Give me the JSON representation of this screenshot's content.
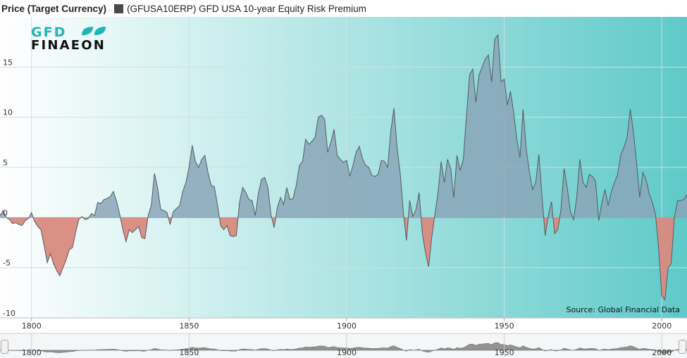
{
  "legend": {
    "price_title": "Price (Target Currency)",
    "series_name": "(GFUSA10ERP) GFD USA 10-year Equity Risk Premium"
  },
  "logo": {
    "line1": "GFD",
    "line2": "FINAEON"
  },
  "source": "Source: Global Financial Data",
  "colors": {
    "positive_fill": "#8aa6b8",
    "negative_fill": "#d98a80",
    "line": "#555b60",
    "grid": "#d7dcdf",
    "bg_left": "#ffffff",
    "bg_right": "#5fcac9",
    "navigator_fill": "#6a6a6a"
  },
  "chart_data": {
    "type": "area",
    "title": "",
    "xlabel": "",
    "ylabel": "",
    "xlim": [
      1790,
      2008
    ],
    "ylim": [
      -10,
      20
    ],
    "yticks": [
      -10,
      -5,
      0,
      5,
      10,
      15
    ],
    "xticks": [
      1800,
      1850,
      1900,
      1950,
      2000
    ],
    "navigator_ticks": [
      1800,
      1850,
      1900,
      1950,
      2000
    ],
    "series": [
      {
        "points": [
          [
            1790,
            0.2
          ],
          [
            1791,
            0.7
          ],
          [
            1792,
            0
          ],
          [
            1793,
            -0.2
          ],
          [
            1794,
            -0.6
          ],
          [
            1795,
            -0.5
          ],
          [
            1796,
            -0.7
          ],
          [
            1797,
            -0.8
          ],
          [
            1798,
            -0.3
          ],
          [
            1799,
            -0.1
          ],
          [
            1800,
            0.5
          ],
          [
            1801,
            -0.4
          ],
          [
            1802,
            -0.9
          ],
          [
            1803,
            -1.2
          ],
          [
            1804,
            -2.8
          ],
          [
            1805,
            -4.5
          ],
          [
            1806,
            -3.6
          ],
          [
            1807,
            -4.6
          ],
          [
            1808,
            -5.3
          ],
          [
            1809,
            -5.8
          ],
          [
            1810,
            -5.0
          ],
          [
            1811,
            -4.2
          ],
          [
            1812,
            -3.2
          ],
          [
            1813,
            -3.0
          ],
          [
            1814,
            -1.5
          ],
          [
            1815,
            -0.2
          ],
          [
            1816,
            0.1
          ],
          [
            1817,
            -0.2
          ],
          [
            1818,
            -0.1
          ],
          [
            1819,
            0.4
          ],
          [
            1820,
            0.2
          ],
          [
            1821,
            1.5
          ],
          [
            1822,
            1.4
          ],
          [
            1823,
            1.8
          ],
          [
            1824,
            1.9
          ],
          [
            1825,
            2.1
          ],
          [
            1826,
            2.6
          ],
          [
            1827,
            1.6
          ],
          [
            1828,
            0.3
          ],
          [
            1829,
            -1.2
          ],
          [
            1830,
            -2.4
          ],
          [
            1831,
            -1.2
          ],
          [
            1832,
            -1.5
          ],
          [
            1833,
            -1.2
          ],
          [
            1834,
            -0.9
          ],
          [
            1835,
            -2.0
          ],
          [
            1836,
            -2.1
          ],
          [
            1837,
            0.2
          ],
          [
            1838,
            1.2
          ],
          [
            1839,
            4.4
          ],
          [
            1840,
            3.0
          ],
          [
            1841,
            0.8
          ],
          [
            1842,
            0.7
          ],
          [
            1843,
            0.5
          ],
          [
            1844,
            -0.7
          ],
          [
            1845,
            0.6
          ],
          [
            1846,
            0.9
          ],
          [
            1847,
            1.2
          ],
          [
            1848,
            2.6
          ],
          [
            1849,
            3.5
          ],
          [
            1850,
            5.0
          ],
          [
            1851,
            7.2
          ],
          [
            1852,
            5.6
          ],
          [
            1853,
            5.0
          ],
          [
            1854,
            5.8
          ],
          [
            1855,
            6.2
          ],
          [
            1856,
            4.5
          ],
          [
            1857,
            3.2
          ],
          [
            1858,
            3.1
          ],
          [
            1859,
            1.3
          ],
          [
            1860,
            -0.8
          ],
          [
            1861,
            -1.2
          ],
          [
            1862,
            -0.8
          ],
          [
            1863,
            -1.8
          ],
          [
            1864,
            -1.9
          ],
          [
            1865,
            -1.8
          ],
          [
            1866,
            1.5
          ],
          [
            1867,
            3.0
          ],
          [
            1868,
            2.5
          ],
          [
            1869,
            1.8
          ],
          [
            1870,
            1.7
          ],
          [
            1871,
            0.2
          ],
          [
            1872,
            2.4
          ],
          [
            1873,
            3.8
          ],
          [
            1874,
            4.0
          ],
          [
            1875,
            3.0
          ],
          [
            1876,
            0.3
          ],
          [
            1877,
            -1.0
          ],
          [
            1878,
            1.0
          ],
          [
            1879,
            2.0
          ],
          [
            1880,
            1.3
          ],
          [
            1881,
            3.0
          ],
          [
            1882,
            1.8
          ],
          [
            1883,
            1.9
          ],
          [
            1884,
            3.2
          ],
          [
            1885,
            5.2
          ],
          [
            1886,
            5.6
          ],
          [
            1887,
            7.8
          ],
          [
            1888,
            7.3
          ],
          [
            1889,
            7.6
          ],
          [
            1890,
            8.0
          ],
          [
            1891,
            10.0
          ],
          [
            1892,
            10.2
          ],
          [
            1893,
            9.8
          ],
          [
            1894,
            6.5
          ],
          [
            1895,
            7.5
          ],
          [
            1896,
            8.8
          ],
          [
            1897,
            6.2
          ],
          [
            1898,
            5.8
          ],
          [
            1899,
            5.5
          ],
          [
            1900,
            5.7
          ],
          [
            1901,
            4.1
          ],
          [
            1902,
            5.2
          ],
          [
            1903,
            6.5
          ],
          [
            1904,
            7.1
          ],
          [
            1905,
            5.9
          ],
          [
            1906,
            5.2
          ],
          [
            1907,
            5.0
          ],
          [
            1908,
            4.2
          ],
          [
            1909,
            4.1
          ],
          [
            1910,
            4.3
          ],
          [
            1911,
            5.7
          ],
          [
            1912,
            5.6
          ],
          [
            1913,
            5.0
          ],
          [
            1914,
            8.6
          ],
          [
            1915,
            10.9
          ],
          [
            1916,
            7.0
          ],
          [
            1917,
            4.4
          ],
          [
            1918,
            0.5
          ],
          [
            1919,
            -2.3
          ],
          [
            1920,
            1.7
          ],
          [
            1921,
            0.1
          ],
          [
            1922,
            0.8
          ],
          [
            1923,
            2.5
          ],
          [
            1924,
            -1.5
          ],
          [
            1925,
            -3.5
          ],
          [
            1926,
            -4.9
          ],
          [
            1927,
            -2.0
          ],
          [
            1928,
            0.3
          ],
          [
            1929,
            2.5
          ],
          [
            1930,
            5.6
          ],
          [
            1931,
            3.5
          ],
          [
            1932,
            5.8
          ],
          [
            1933,
            4.9
          ],
          [
            1934,
            2.0
          ],
          [
            1935,
            6.2
          ],
          [
            1936,
            4.7
          ],
          [
            1937,
            5.8
          ],
          [
            1938,
            10.0
          ],
          [
            1939,
            14.2
          ],
          [
            1940,
            14.8
          ],
          [
            1941,
            11.5
          ],
          [
            1942,
            14.2
          ],
          [
            1943,
            15.0
          ],
          [
            1944,
            15.8
          ],
          [
            1945,
            16.2
          ],
          [
            1946,
            13.5
          ],
          [
            1947,
            17.8
          ],
          [
            1948,
            18.2
          ],
          [
            1949,
            13.5
          ],
          [
            1950,
            13.8
          ],
          [
            1951,
            11.2
          ],
          [
            1952,
            12.6
          ],
          [
            1953,
            10.5
          ],
          [
            1954,
            7.8
          ],
          [
            1955,
            6.0
          ],
          [
            1956,
            10.8
          ],
          [
            1957,
            6.8
          ],
          [
            1958,
            4.5
          ],
          [
            1959,
            2.8
          ],
          [
            1960,
            3.5
          ],
          [
            1961,
            6.3
          ],
          [
            1962,
            2.0
          ],
          [
            1963,
            -1.8
          ],
          [
            1964,
            0.2
          ],
          [
            1965,
            1.6
          ],
          [
            1966,
            -1.6
          ],
          [
            1967,
            -1.2
          ],
          [
            1968,
            0.8
          ],
          [
            1969,
            4.9
          ],
          [
            1970,
            3.0
          ],
          [
            1971,
            0.6
          ],
          [
            1972,
            -0.2
          ],
          [
            1973,
            2.0
          ],
          [
            1974,
            5.8
          ],
          [
            1975,
            3.5
          ],
          [
            1976,
            3.0
          ],
          [
            1977,
            4.3
          ],
          [
            1978,
            4.1
          ],
          [
            1979,
            3.6
          ],
          [
            1980,
            -0.3
          ],
          [
            1981,
            1.5
          ],
          [
            1982,
            2.8
          ],
          [
            1983,
            1.2
          ],
          [
            1984,
            2.6
          ],
          [
            1985,
            3.5
          ],
          [
            1986,
            4.3
          ],
          [
            1987,
            6.3
          ],
          [
            1988,
            7.0
          ],
          [
            1989,
            8.0
          ],
          [
            1990,
            10.8
          ],
          [
            1991,
            8.5
          ],
          [
            1992,
            5.5
          ],
          [
            1993,
            2.0
          ],
          [
            1994,
            4.5
          ],
          [
            1995,
            3.8
          ],
          [
            1996,
            2.4
          ],
          [
            1997,
            1.5
          ],
          [
            1998,
            0.3
          ],
          [
            1999,
            -3.0
          ],
          [
            2000,
            -7.8
          ],
          [
            2001,
            -8.2
          ],
          [
            2002,
            -5.0
          ],
          [
            2003,
            -4.6
          ],
          [
            2004,
            0.0
          ],
          [
            2005,
            1.7
          ],
          [
            2006,
            1.7
          ],
          [
            2007,
            1.8
          ],
          [
            2008,
            2.3
          ]
        ]
      }
    ]
  }
}
